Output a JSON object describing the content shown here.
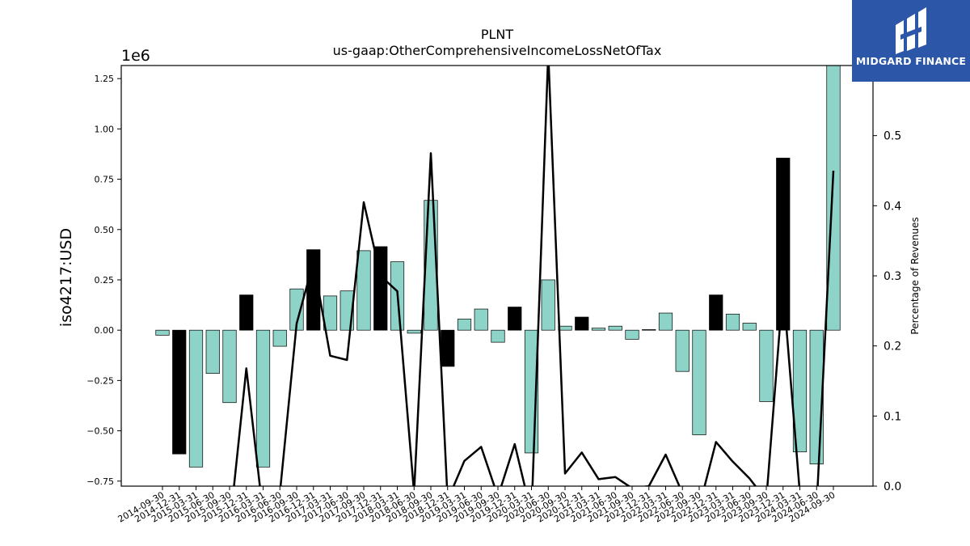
{
  "chart_data": {
    "type": "bar",
    "title": "PLNT",
    "subtitle": "us-gaap:OtherComprehensiveIncomeLossNetOfTax",
    "ylabel": "iso4217:USD",
    "y2label": "Percentage of Revenues",
    "y_offset_text": "1e6",
    "ylim": [
      -775000,
      1315000
    ],
    "y2lim": [
      0.0,
      0.6
    ],
    "yticks": [
      "−0.75",
      "−0.50",
      "−0.25",
      "0.00",
      "0.25",
      "0.50",
      "0.75",
      "1.00",
      "1.25"
    ],
    "y2ticks": [
      "0.0",
      "0.1",
      "0.2",
      "0.3",
      "0.4",
      "0.5",
      "0.6"
    ],
    "categories": [
      "2014-09-30",
      "2014-12-31",
      "2015-03-31",
      "2015-06-30",
      "2015-09-30",
      "2015-12-31",
      "2016-03-31",
      "2016-06-30",
      "2016-09-30",
      "2016-12-31",
      "2017-03-31",
      "2017-06-30",
      "2017-09-30",
      "2017-12-31",
      "2018-03-31",
      "2018-06-30",
      "2018-09-30",
      "2018-12-31",
      "2019-03-31",
      "2019-06-30",
      "2019-09-30",
      "2019-12-31",
      "2020-03-31",
      "2020-06-30",
      "2020-09-30",
      "2020-12-31",
      "2021-03-31",
      "2021-06-30",
      "2021-09-30",
      "2021-12-31",
      "2022-03-31",
      "2022-06-30",
      "2022-09-30",
      "2022-12-31",
      "2023-03-31",
      "2023-06-30",
      "2023-09-30",
      "2023-12-31",
      "2024-03-31",
      "2024-06-30",
      "2024-09-30"
    ],
    "bar_values": [
      -25000,
      -615000,
      -680000,
      -215000,
      -360000,
      175000,
      -680000,
      -80000,
      205000,
      400000,
      170000,
      195000,
      395000,
      415000,
      340000,
      -15000,
      645000,
      -180000,
      55000,
      105000,
      -60000,
      115000,
      -610000,
      250000,
      20000,
      65000,
      10000,
      20000,
      -45000,
      3000,
      85000,
      -205000,
      -520000,
      175000,
      80000,
      35000,
      -355000,
      855000,
      -605000,
      -665000,
      1320000
    ],
    "bar_colors": [
      "#8dd3c7",
      "#000000",
      "#8dd3c7",
      "#8dd3c7",
      "#8dd3c7",
      "#000000",
      "#8dd3c7",
      "#8dd3c7",
      "#8dd3c7",
      "#000000",
      "#8dd3c7",
      "#8dd3c7",
      "#8dd3c7",
      "#000000",
      "#8dd3c7",
      "#8dd3c7",
      "#8dd3c7",
      "#000000",
      "#8dd3c7",
      "#8dd3c7",
      "#8dd3c7",
      "#000000",
      "#8dd3c7",
      "#8dd3c7",
      "#8dd3c7",
      "#000000",
      "#8dd3c7",
      "#8dd3c7",
      "#8dd3c7",
      "#8dd3c7",
      "#8dd3c7",
      "#8dd3c7",
      "#8dd3c7",
      "#000000",
      "#8dd3c7",
      "#8dd3c7",
      "#8dd3c7",
      "#000000",
      "#8dd3c7",
      "#8dd3c7",
      "#8dd3c7"
    ],
    "line_values": [
      -0.02,
      -0.03,
      -0.05,
      -0.02,
      -0.06,
      0.168,
      -0.04,
      -0.01,
      0.232,
      0.32,
      0.186,
      0.18,
      0.405,
      0.3,
      0.278,
      -0.01,
      0.475,
      -0.02,
      0.036,
      0.056,
      -0.015,
      0.06,
      -0.04,
      0.618,
      0.018,
      0.048,
      0.01,
      0.013,
      -0.003,
      0.0,
      0.045,
      -0.01,
      -0.03,
      0.063,
      0.035,
      0.011,
      -0.02,
      0.285,
      -0.01,
      -0.03,
      0.45
    ],
    "line_color": "#000000",
    "grid": false
  },
  "logo": {
    "text": "MIDGARD FINANCE",
    "background": "#2c56a8"
  }
}
